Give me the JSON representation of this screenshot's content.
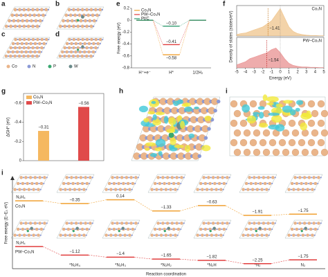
{
  "panel_labels": [
    "a",
    "b",
    "c",
    "d",
    "e",
    "f",
    "g",
    "h",
    "i",
    "i"
  ],
  "structure_legend": [
    "Co",
    "N",
    "P",
    "W"
  ],
  "chart_data": [
    {
      "type": "free_energy",
      "ylabel": "Free energy (eV)",
      "categories": [
        "H⁺+e⁻",
        "H*",
        "1/2H₂"
      ],
      "ylim": [
        -0.8,
        0.2
      ],
      "yticks": [
        -0.8,
        -0.6,
        -0.4,
        -0.2,
        0,
        0.2
      ],
      "series": [
        {
          "name": "Co₃N",
          "color": "#f0a030",
          "values": [
            0,
            -0.58,
            0
          ],
          "value_labels": [
            null,
            "−0.58",
            null
          ]
        },
        {
          "name": "PW–Co₃N",
          "color": "#e03c3c",
          "values": [
            0,
            -0.41,
            0
          ],
          "value_labels": [
            null,
            "−0.41",
            null
          ]
        },
        {
          "name": "Pt/C",
          "color": "#2e9a6e",
          "values": [
            0,
            -0.1,
            0
          ],
          "value_labels": [
            null,
            "−0.10",
            null
          ]
        }
      ]
    },
    {
      "type": "dos",
      "xlabel": "Energy (eV)",
      "ylabel": "Density of states (states/eV)",
      "xlim": [
        -5,
        5
      ],
      "xticks": [
        -5,
        -4,
        -3,
        -2,
        -1,
        0,
        1,
        2,
        3,
        4,
        5
      ],
      "ylim": [
        0,
        10
      ],
      "x": [
        -5,
        -4.5,
        -4,
        -3.5,
        -3,
        -2.5,
        -2,
        -1.5,
        -1,
        -0.5,
        0,
        0.5,
        1,
        1.5,
        2,
        2.5,
        3,
        3.5,
        4,
        4.5,
        5
      ],
      "series": [
        {
          "name": "Co₃N",
          "color": "#efc48c",
          "d_band_center": -1.41,
          "d_band_center_label": "−1.41",
          "values": [
            0.5,
            0.8,
            1,
            1.5,
            2,
            2.5,
            3,
            4,
            5,
            7,
            9,
            6,
            3,
            1.5,
            0.8,
            0.5,
            0.3,
            0.2,
            0.2,
            0.1,
            0.1
          ]
        },
        {
          "name": "PW–Co₃N",
          "color": "#e89090",
          "d_band_center": -1.54,
          "d_band_center_label": "−1.54",
          "values": [
            1,
            1.5,
            2,
            3,
            3.5,
            4,
            4.5,
            5,
            6,
            6.5,
            5,
            3,
            1.5,
            0.8,
            0.5,
            0.3,
            0.3,
            0.2,
            0.2,
            0.1,
            0.1
          ]
        }
      ]
    },
    {
      "type": "bar",
      "ylabel": "ΔGH* (eV)",
      "categories": [
        "Co₃N",
        "PW–Co₃N"
      ],
      "values": [
        -0.31,
        -0.56
      ],
      "value_labels": [
        "−0.31",
        "−0.56"
      ],
      "colors": [
        "#f5b860",
        "#e04a4a"
      ],
      "ylim": [
        0,
        -0.7
      ],
      "yticks": [
        0,
        -0.2,
        -0.4,
        -0.6
      ]
    },
    {
      "type": "reaction_path",
      "ylabel": "Free energy (E–E₀ eV)",
      "xlabel": "Reaction coordination",
      "categories": [
        null,
        "*N₂H₄",
        "*N₂H₃",
        "*N₂H₂",
        "*N₂H",
        "*N₂",
        "N₂"
      ],
      "series": [
        {
          "name": "Co₃N",
          "color": "#f0a030",
          "start_label": "N₂H₄",
          "values": [
            0,
            -0.35,
            0.14,
            -1.33,
            -0.63,
            -1.91,
            -1.75
          ],
          "value_labels": [
            null,
            "−0.35",
            "0.14",
            "−1.33",
            "−0.63",
            "−1.91",
            "−1.75"
          ]
        },
        {
          "name": "PW–Co₃N",
          "color": "#e03c3c",
          "start_label": "N₂H₄",
          "values": [
            0,
            -1.12,
            -1.4,
            -1.65,
            -1.82,
            -2.25,
            -1.75
          ],
          "value_labels": [
            null,
            "−1.12",
            "−1.4",
            "−1.65",
            "−1.82",
            "−2.25",
            "−1.75"
          ]
        }
      ]
    }
  ]
}
